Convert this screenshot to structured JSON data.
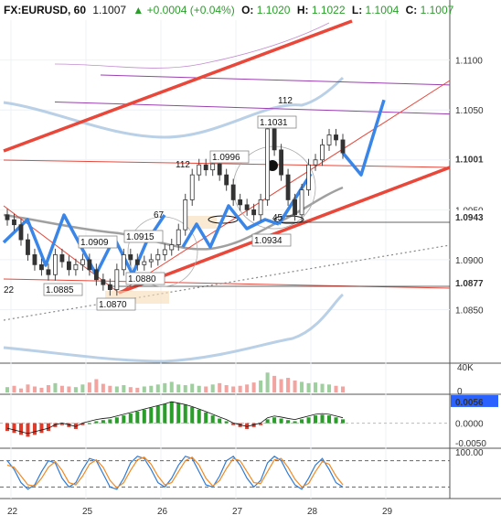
{
  "header": {
    "symbol": "FX:EURUSD, 60",
    "last": "1.1007",
    "change": "+0.0004 (+0.04%)",
    "o_label": "O:",
    "o": "1.1020",
    "h_label": "H:",
    "h": "1.1022",
    "l_label": "L:",
    "l": "1.1004",
    "c_label": "C:",
    "c": "1.1007"
  },
  "colors": {
    "up": "#2a9d2a",
    "down": "#e03a2a",
    "trend": "#e8473a",
    "forecast": "#3a86e8",
    "band": "#a8c4e0",
    "purple": "#9a3fb0",
    "grey": "#999999"
  },
  "price_axis": {
    "ticks": [
      "1.1100",
      "1.1050",
      "1.1000",
      "1.0950",
      "1.0900",
      "1.0850"
    ],
    "badges": [
      {
        "name": "price-badge-1101",
        "text": "1.1001",
        "value": 1.1001
      },
      {
        "name": "price-badge-1094",
        "text": "1.0943",
        "value": 1.0943
      },
      {
        "name": "price-badge-1088",
        "text": "1.0877",
        "value": 1.0877
      }
    ]
  },
  "volume_axis": {
    "ticks": [
      "40K",
      "0"
    ]
  },
  "macd_axis": {
    "ticks": [
      "0.0056",
      "0.0000",
      "-0.0050"
    ]
  },
  "stoch_axis": {
    "ticks": [
      "100.00"
    ]
  },
  "time_axis": {
    "ticks": [
      "22",
      "25",
      "26",
      "27",
      "28",
      "29"
    ]
  },
  "annotations": [
    {
      "name": "label-1-0885",
      "text": "1.0885"
    },
    {
      "name": "label-1-0870",
      "text": "1.0870"
    },
    {
      "name": "label-1-0880",
      "text": "1.0880"
    },
    {
      "name": "label-1-0909",
      "text": "1.0909"
    },
    {
      "name": "label-1-0915",
      "text": "1.0915"
    },
    {
      "name": "label-1-0996",
      "text": "1.0996"
    },
    {
      "name": "label-1-1031",
      "text": "1.1031"
    },
    {
      "name": "label-1-0934",
      "text": "1.0934"
    },
    {
      "name": "label-67",
      "text": "67"
    },
    {
      "name": "label-45",
      "text": "45"
    },
    {
      "name": "label-112-a",
      "text": "112"
    },
    {
      "name": "label-112-b",
      "text": "112"
    },
    {
      "name": "label-22-left",
      "text": "22"
    }
  ],
  "chart_data": {
    "type": "candlestick",
    "title": "",
    "xlabel": "",
    "ylabel": "",
    "ylim": [
      1.08,
      1.114
    ],
    "x_ticks": [
      "22",
      "25",
      "26",
      "27",
      "28",
      "29"
    ],
    "support_resistance": [
      1.1001,
      1.0943,
      1.0877
    ],
    "marked_levels": [
      1.0885,
      1.087,
      1.088,
      1.0909,
      1.0915,
      1.0996,
      1.1031,
      1.0934
    ],
    "closes": [
      1.094,
      1.0935,
      1.092,
      1.0905,
      1.0895,
      1.089,
      1.0885,
      1.0905,
      1.0898,
      1.089,
      1.0895,
      1.09,
      1.089,
      1.088,
      1.0875,
      1.087,
      1.089,
      1.0905,
      1.09,
      1.0895,
      1.0898,
      1.09,
      1.0905,
      1.091,
      1.0915,
      1.093,
      1.096,
      1.0985,
      1.0995,
      1.099,
      1.0996,
      1.0985,
      1.0975,
      1.096,
      1.0955,
      1.095,
      1.0945,
      1.096,
      1.1031,
      1.101,
      1.0985,
      1.096,
      1.0945,
      1.097,
      1.0995,
      1.1,
      1.1015,
      1.1025,
      1.102,
      1.1007
    ],
    "forecast_path": [
      1.1007,
      1.0985,
      1.106
    ],
    "volume": [
      8,
      10,
      6,
      12,
      9,
      7,
      11,
      14,
      10,
      9,
      8,
      12,
      15,
      20,
      13,
      10,
      9,
      11,
      8,
      7,
      9,
      10,
      12,
      14,
      16,
      12,
      11,
      13,
      10,
      9,
      12,
      14,
      11,
      9,
      10,
      12,
      15,
      18,
      30,
      25,
      20,
      22,
      18,
      16,
      14,
      15,
      13,
      12,
      10,
      9
    ],
    "macd_hist": [
      -0.002,
      -0.0025,
      -0.003,
      -0.0035,
      -0.003,
      -0.0025,
      -0.002,
      -0.001,
      -0.0005,
      -0.001,
      -0.0015,
      -0.0005,
      0.0,
      0.0005,
      0.0008,
      0.001,
      0.0015,
      0.002,
      0.0025,
      0.003,
      0.0035,
      0.004,
      0.0045,
      0.005,
      0.0056,
      0.0052,
      0.0048,
      0.0042,
      0.0035,
      0.0028,
      0.002,
      0.0012,
      0.0005,
      -0.0005,
      -0.001,
      -0.0015,
      -0.001,
      -0.0005,
      0.001,
      0.0015,
      0.0012,
      0.0008,
      0.0005,
      0.001,
      0.0015,
      0.002,
      0.0022,
      0.002,
      0.0015,
      0.001
    ],
    "stoch_k": [
      80,
      60,
      30,
      15,
      25,
      55,
      80,
      75,
      40,
      20,
      30,
      60,
      85,
      80,
      50,
      20,
      15,
      40,
      75,
      90,
      85,
      60,
      30,
      20,
      40,
      70,
      90,
      85,
      55,
      25,
      20,
      45,
      80,
      90,
      70,
      40,
      20,
      35,
      75,
      90,
      80,
      50,
      25,
      15,
      40,
      70,
      85,
      60,
      30,
      20
    ],
    "stoch_d": [
      70,
      65,
      45,
      25,
      22,
      40,
      65,
      78,
      58,
      30,
      25,
      45,
      72,
      82,
      65,
      35,
      18,
      30,
      58,
      82,
      88,
      72,
      45,
      25,
      30,
      55,
      80,
      88,
      70,
      40,
      22,
      35,
      62,
      85,
      80,
      55,
      30,
      28,
      55,
      82,
      85,
      65,
      38,
      20,
      28,
      55,
      78,
      72,
      45,
      25
    ]
  }
}
